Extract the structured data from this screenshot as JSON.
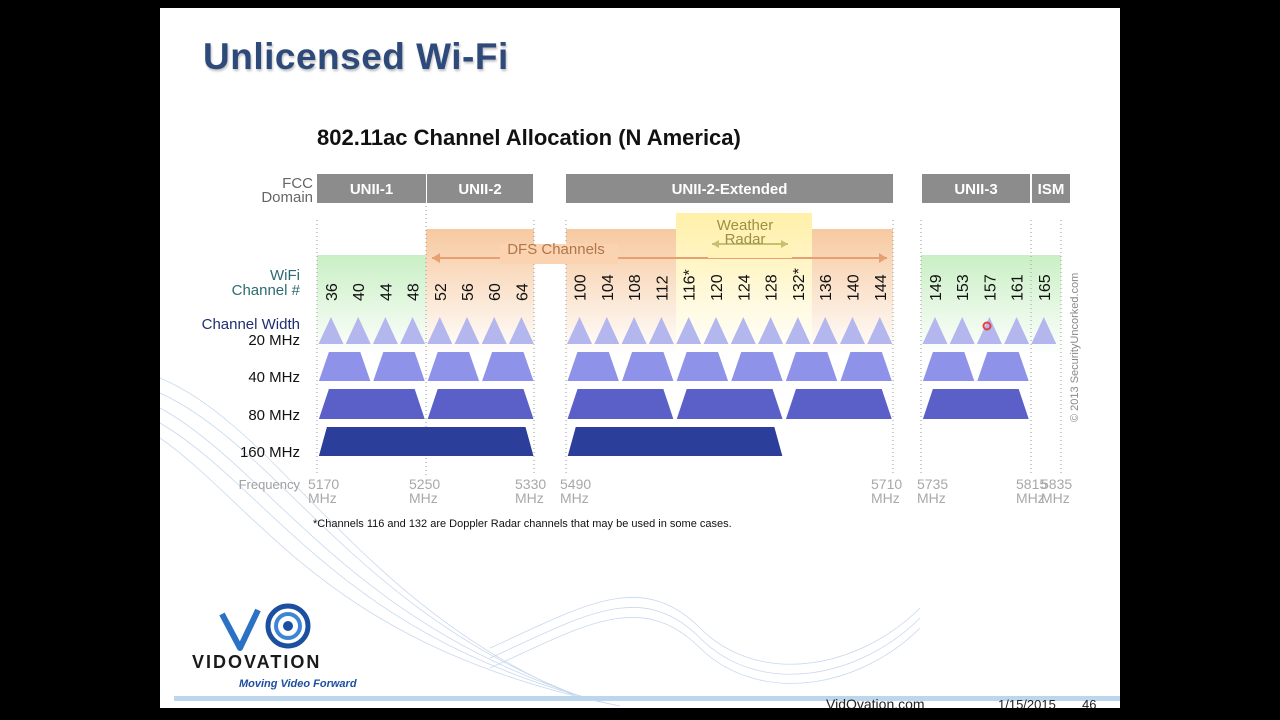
{
  "slide": {
    "title": "Unlicensed Wi-Fi",
    "footer": {
      "site": "VidOvation.com",
      "date": "1/15/2015",
      "page": "46"
    },
    "logo": {
      "name": "VIDOVATION",
      "tagline": "Moving Video Forward"
    }
  },
  "diagram": {
    "title": "802.11ac Channel Allocation (N America)",
    "fcc_domain_label": [
      "FCC",
      "Domain"
    ],
    "domains": [
      "UNII-1",
      "UNII-2",
      "UNII-2-Extended",
      "UNII-3",
      "ISM"
    ],
    "dfs_label": "DFS Channels",
    "weather_radar_label": [
      "Weather",
      "Radar"
    ],
    "wifi_channel_label": [
      "WiFi",
      "Channel #"
    ],
    "channels": [
      "36",
      "40",
      "44",
      "48",
      "52",
      "56",
      "60",
      "64",
      "100",
      "104",
      "108",
      "112",
      "116*",
      "120",
      "124",
      "128",
      "132*",
      "136",
      "140",
      "144",
      "149",
      "153",
      "157",
      "161",
      "165"
    ],
    "width_labels": [
      "Channel Width",
      "20 MHz",
      "40 MHz",
      "80 MHz",
      "160 MHz"
    ],
    "frequency_label": "Frequency",
    "frequencies": [
      "5170",
      "5250",
      "5330",
      "5490",
      "5710",
      "5735",
      "5815",
      "5835"
    ],
    "frequency_unit": "MHz",
    "footnote": "*Channels 116 and 132 are Doppler Radar channels that may be used in some cases.",
    "copyright": "© 2013 SecurityUncorked.com",
    "colors": {
      "domain_bar": "#8c8c8c",
      "unii1_bg": "#d6f2d2",
      "dfs_bg": "#fbdcbf",
      "weather_bg": "#fff7c8",
      "ch20": "#b4b6ee",
      "ch40": "#8e92e8",
      "ch80": "#5a60c8",
      "ch160": "#2b3f9a"
    }
  }
}
